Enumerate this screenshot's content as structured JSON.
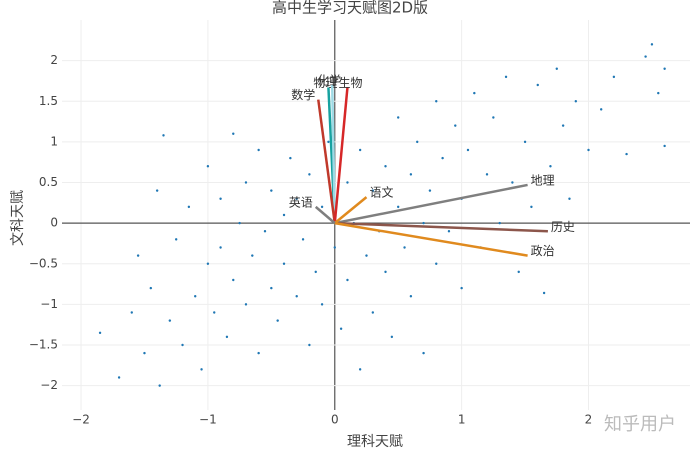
{
  "chart_data": {
    "type": "biplot",
    "title": "高中生学习天赋图2D版",
    "x_label": "理科天赋",
    "y_label": "文科天赋",
    "watermark": "知乎用户",
    "xlim": [
      -2.15,
      2.8
    ],
    "ylim": [
      -2.3,
      2.5
    ],
    "xticks": [
      {
        "value": -2,
        "label": "−2"
      },
      {
        "value": -1,
        "label": "−1"
      },
      0,
      1,
      2
    ],
    "yticks": [
      {
        "value": -2,
        "label": "−2"
      },
      {
        "value": -1.5,
        "label": "−1.5"
      },
      {
        "value": -1,
        "label": "−1"
      },
      {
        "value": -0.5,
        "label": "−0.5"
      },
      0,
      0.5,
      1,
      1.5,
      2
    ],
    "grid": true,
    "point_color": "#1f77b4",
    "x": [
      -1.85,
      -1.7,
      -1.6,
      -1.55,
      -1.5,
      -1.45,
      -1.4,
      -1.38,
      -1.35,
      -1.3,
      -1.25,
      -1.2,
      -1.15,
      -1.1,
      -1.05,
      -1.0,
      -1.0,
      -0.95,
      -0.9,
      -0.9,
      -0.85,
      -0.8,
      -0.8,
      -0.75,
      -0.7,
      -0.7,
      -0.65,
      -0.6,
      -0.6,
      -0.55,
      -0.5,
      -0.5,
      -0.45,
      -0.4,
      -0.4,
      -0.35,
      -0.3,
      -0.3,
      -0.25,
      -0.2,
      -0.2,
      -0.15,
      -0.1,
      -0.1,
      -0.05,
      0.0,
      0.05,
      0.1,
      0.1,
      0.15,
      0.2,
      0.2,
      0.25,
      0.3,
      0.3,
      0.35,
      0.4,
      0.4,
      0.45,
      0.5,
      0.5,
      0.55,
      0.6,
      0.6,
      0.65,
      0.7,
      0.7,
      0.75,
      0.8,
      0.8,
      0.85,
      0.9,
      0.95,
      1.0,
      1.0,
      1.05,
      1.1,
      1.15,
      1.2,
      1.25,
      1.3,
      1.35,
      1.4,
      1.45,
      1.5,
      1.55,
      1.6,
      1.65,
      1.7,
      1.75,
      1.8,
      1.85,
      1.9,
      2.0,
      2.1,
      2.2,
      2.3,
      2.45,
      2.5,
      2.55,
      2.6,
      2.6
    ],
    "y": [
      -1.35,
      -1.9,
      -1.1,
      -0.4,
      -1.6,
      -0.8,
      0.4,
      -2.0,
      1.08,
      -1.2,
      -0.2,
      -1.5,
      0.2,
      -0.9,
      -1.8,
      -0.5,
      0.7,
      -1.1,
      0.3,
      -0.3,
      -1.4,
      1.1,
      -0.7,
      0.0,
      -1.0,
      0.5,
      -0.4,
      -1.6,
      0.9,
      -0.1,
      -0.8,
      0.4,
      -1.2,
      0.1,
      -0.5,
      0.8,
      -0.9,
      0.3,
      -0.2,
      -1.5,
      0.6,
      -0.6,
      0.2,
      -1.0,
      1.0,
      -0.3,
      -1.3,
      0.5,
      -0.7,
      0.0,
      -1.8,
      0.9,
      -0.4,
      0.4,
      -1.1,
      -0.1,
      0.7,
      -0.6,
      -1.4,
      0.2,
      1.3,
      -0.3,
      0.6,
      -0.9,
      1.0,
      0.0,
      -1.6,
      0.4,
      1.5,
      -0.5,
      0.8,
      -0.1,
      1.2,
      0.3,
      -0.8,
      0.9,
      1.6,
      -0.3,
      0.6,
      1.3,
      0.0,
      1.8,
      0.5,
      -0.6,
      1.0,
      0.2,
      1.7,
      -0.86,
      0.7,
      1.9,
      1.2,
      0.3,
      1.5,
      0.9,
      1.4,
      1.8,
      0.85,
      2.05,
      2.2,
      1.6,
      1.9,
      0.95
    ],
    "vectors": [
      {
        "name": "物理",
        "color": "#17a2a0",
        "x": -0.05,
        "y": 1.67
      },
      {
        "name": "化学",
        "color": "#9edae5",
        "x": -0.02,
        "y": 1.7
      },
      {
        "name": "数学",
        "color": "#c0392b",
        "x": -0.13,
        "y": 1.52
      },
      {
        "name": "生物",
        "color": "#d62728",
        "x": 0.1,
        "y": 1.67
      },
      {
        "name": "地理",
        "color": "#7f7f7f",
        "x": 1.52,
        "y": 0.47
      },
      {
        "name": "历史",
        "color": "#8c564b",
        "x": 1.68,
        "y": -0.1
      },
      {
        "name": "政治",
        "color": "#e08a1e",
        "x": 1.52,
        "y": -0.4
      },
      {
        "name": "语文",
        "color": "#e08a1e",
        "x": 0.25,
        "y": 0.32
      },
      {
        "name": "英语",
        "color": "#7f7f7f",
        "x": -0.15,
        "y": 0.2
      }
    ]
  }
}
